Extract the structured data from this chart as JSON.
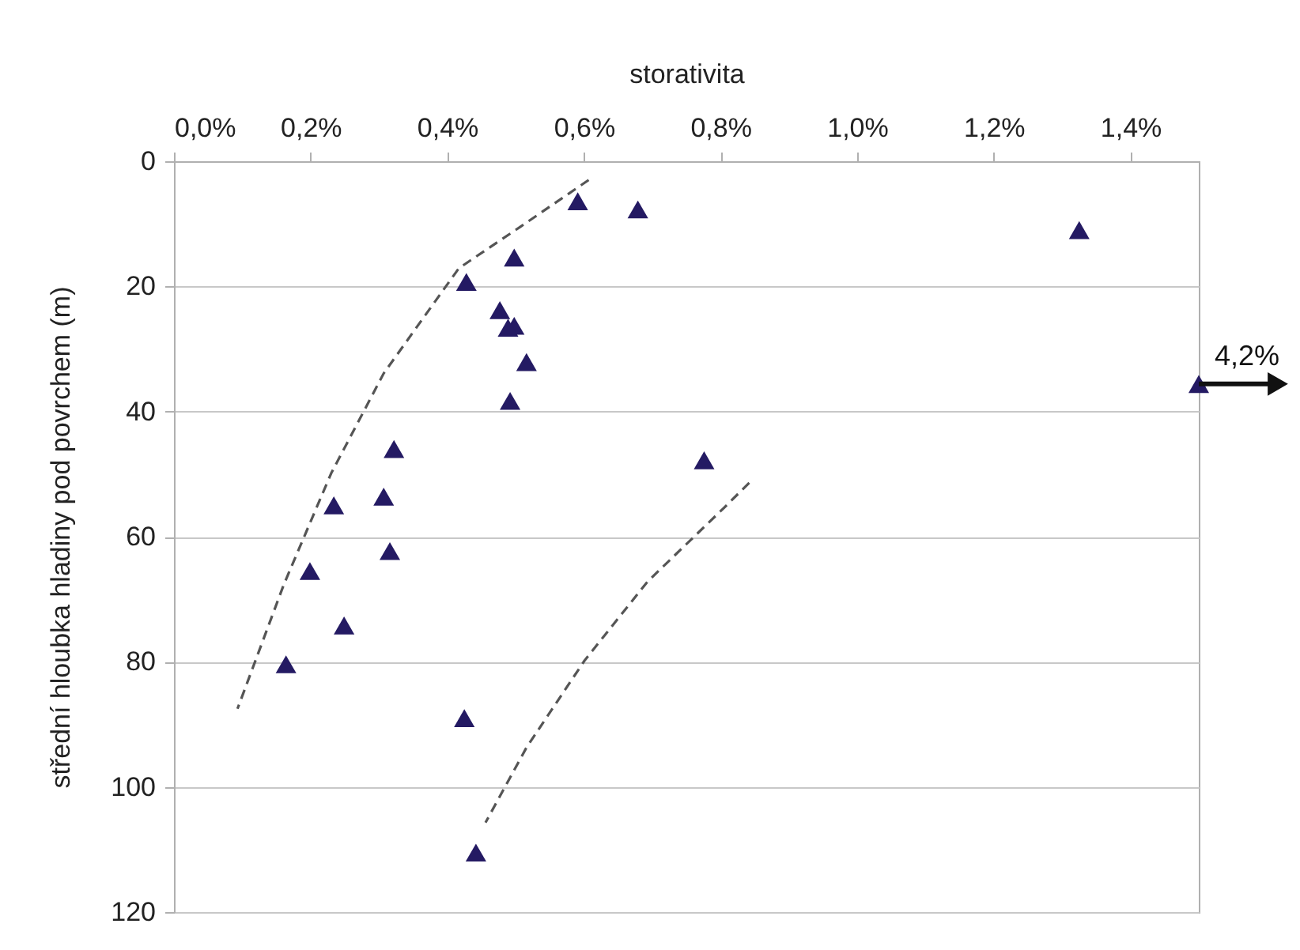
{
  "chart_data": {
    "type": "scatter",
    "xlabel": "storativita",
    "ylabel": "střední hloubka hladiny pod povrchem (m)",
    "xlim": [
      0,
      1.5
    ],
    "xticks": [
      {
        "value": 0,
        "label": "0,0%"
      },
      {
        "value": 0.2,
        "label": "0,2%"
      },
      {
        "value": 0.4,
        "label": "0,4%"
      },
      {
        "value": 0.6,
        "label": "0,6%"
      },
      {
        "value": 0.8,
        "label": "0,8%"
      },
      {
        "value": 1.0,
        "label": "1,0%"
      },
      {
        "value": 1.2,
        "label": "1,2%"
      },
      {
        "value": 1.4,
        "label": "1,4%"
      }
    ],
    "ylim": [
      120,
      0
    ],
    "yticks": [
      0,
      20,
      40,
      60,
      80,
      100,
      120
    ],
    "grid": "y",
    "legend": false,
    "marker": "triangle",
    "series": [
      {
        "type": "scatter",
        "color": "#241a63",
        "x": [
          0.591,
          0.679,
          0.498,
          0.428,
          0.477,
          0.498,
          0.489,
          0.516,
          0.492,
          0.322,
          0.776,
          0.234,
          0.307,
          0.316,
          0.199,
          0.249,
          0.164,
          0.425,
          0.442,
          1.325,
          1.5
        ],
        "values": [
          6.4,
          7.7,
          15.4,
          19.3,
          23.8,
          26.3,
          26.6,
          32.1,
          38.3,
          46.0,
          47.8,
          55.0,
          53.6,
          62.3,
          65.5,
          74.2,
          80.4,
          89.0,
          110.5,
          11.0,
          35.6
        ]
      },
      {
        "type": "line",
        "color": "#555555",
        "line_style": "dashed",
        "marker": "none",
        "x": [
          0.607,
          0.508,
          0.417,
          0.307,
          0.23,
          0.161,
          0.093
        ],
        "values": [
          3.0,
          10.4,
          17.1,
          33.9,
          49.9,
          67.6,
          87.5
        ]
      },
      {
        "type": "line",
        "color": "#555555",
        "line_style": "dashed",
        "marker": "none",
        "x": [
          0.842,
          0.805,
          0.693,
          0.601,
          0.516,
          0.456
        ],
        "values": [
          51.4,
          55.4,
          67.2,
          79.8,
          93.7,
          105.7
        ]
      }
    ],
    "annotations": [
      {
        "text": "4,2%",
        "x": 1.5,
        "y": 35.6
      }
    ]
  }
}
